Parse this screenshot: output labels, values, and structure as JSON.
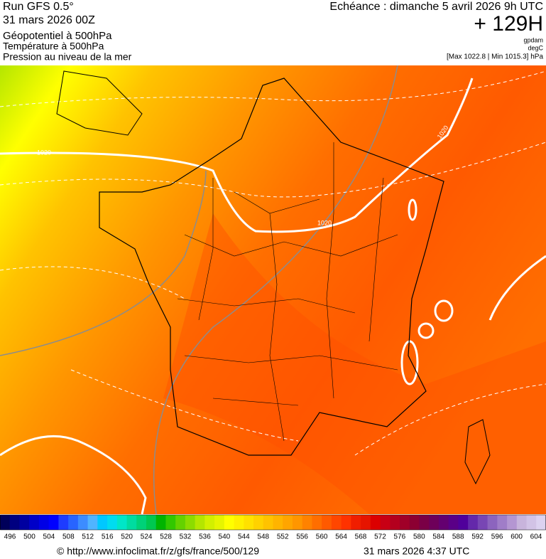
{
  "header": {
    "run": "Run GFS 0.5°",
    "run_date": "31 mars 2026 00Z",
    "var1": "Géopotentiel à 500hPa",
    "var2": "Température à 500hPa",
    "var3": "Pression au niveau de la mer",
    "echeance": "Echéance : dimanche 5 avril 2026 9h UTC",
    "lead": "+ 129H",
    "unit1": "gpdam",
    "unit2": "degC",
    "range": "[Max 1022.8 | Min 1015.3] hPa"
  },
  "map": {
    "isobar_labels": [
      "1020",
      "1020",
      "1020"
    ]
  },
  "colorbar": {
    "ticks": [
      496,
      500,
      504,
      508,
      512,
      516,
      520,
      524,
      528,
      532,
      536,
      540,
      544,
      548,
      552,
      556,
      560,
      564,
      568,
      572,
      576,
      580,
      584,
      588,
      592,
      596,
      600,
      604
    ],
    "colors": [
      "#00005a",
      "#000080",
      "#0000a0",
      "#0000c8",
      "#0000e6",
      "#0000ff",
      "#1e3cff",
      "#2864ff",
      "#3c8cff",
      "#50b4ff",
      "#00c8ff",
      "#00dcf0",
      "#00e6c8",
      "#00dca0",
      "#00d278",
      "#00c850",
      "#00b400",
      "#32c800",
      "#64d200",
      "#8cdc00",
      "#b4e600",
      "#d2f000",
      "#e6f500",
      "#ffff00",
      "#fff000",
      "#ffe100",
      "#ffd200",
      "#ffc300",
      "#ffb400",
      "#ffa500",
      "#ff9600",
      "#ff8200",
      "#ff6e00",
      "#ff5a00",
      "#ff4600",
      "#ff3200",
      "#f01e00",
      "#e61400",
      "#dc0000",
      "#c80014",
      "#b4001e",
      "#a00028",
      "#8c0032",
      "#7a0046",
      "#6e005a",
      "#640070",
      "#5a0087",
      "#50009b",
      "#6428aa",
      "#7846b4",
      "#8c64be",
      "#a07dc8",
      "#b496d2",
      "#c8b4dc",
      "#d2c3e6",
      "#dcd2f0"
    ]
  },
  "footer": {
    "url": "© http://www.infoclimat.fr/z/gfs/france/500/129",
    "date": "31 mars 2026  4:37 UTC"
  }
}
